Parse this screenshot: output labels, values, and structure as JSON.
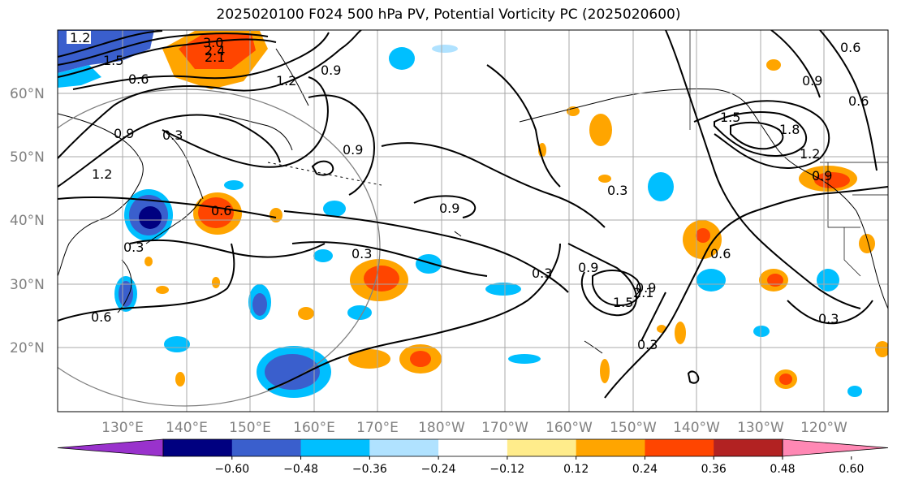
{
  "title": "2025020100 F024 500 hPa PV, Potential Vorticity PC (2025020600)",
  "lat_labels": [
    "60°N",
    "50°N",
    "40°N",
    "30°N",
    "20°N"
  ],
  "lon_labels": [
    "130°E",
    "140°E",
    "150°E",
    "160°E",
    "170°E",
    "180°W",
    "170°W",
    "160°W",
    "150°W",
    "140°W",
    "130°W",
    "120°W"
  ],
  "colorbar": {
    "ticks": [
      "−0.60",
      "−0.48",
      "−0.36",
      "−0.24",
      "−0.12",
      "0.12",
      "0.24",
      "0.36",
      "0.48",
      "0.60"
    ],
    "colors": [
      "#9932cc",
      "#000080",
      "#3a5fcd",
      "#00bfff",
      "#b0e2ff",
      "#ffffff",
      "#ffec8b",
      "#ffa500",
      "#ff4500",
      "#b22222",
      "#ff88b4"
    ]
  },
  "contour_labels": [
    "1.2",
    "1.5",
    "3.0",
    "2.4",
    "2.1",
    "0.6",
    "1.2",
    "0.9",
    "0.9",
    "0.3",
    "0.9",
    "1.2",
    "0.6",
    "0.3",
    "0.9",
    "0.3",
    "0.9",
    "0.3",
    "0.9",
    "1.5",
    "2.1",
    "0.3",
    "0.6",
    "0.3",
    "0.6",
    "0.6",
    "0.9",
    "0.6",
    "1.5",
    "1.8",
    "1.2",
    "0.9"
  ]
}
